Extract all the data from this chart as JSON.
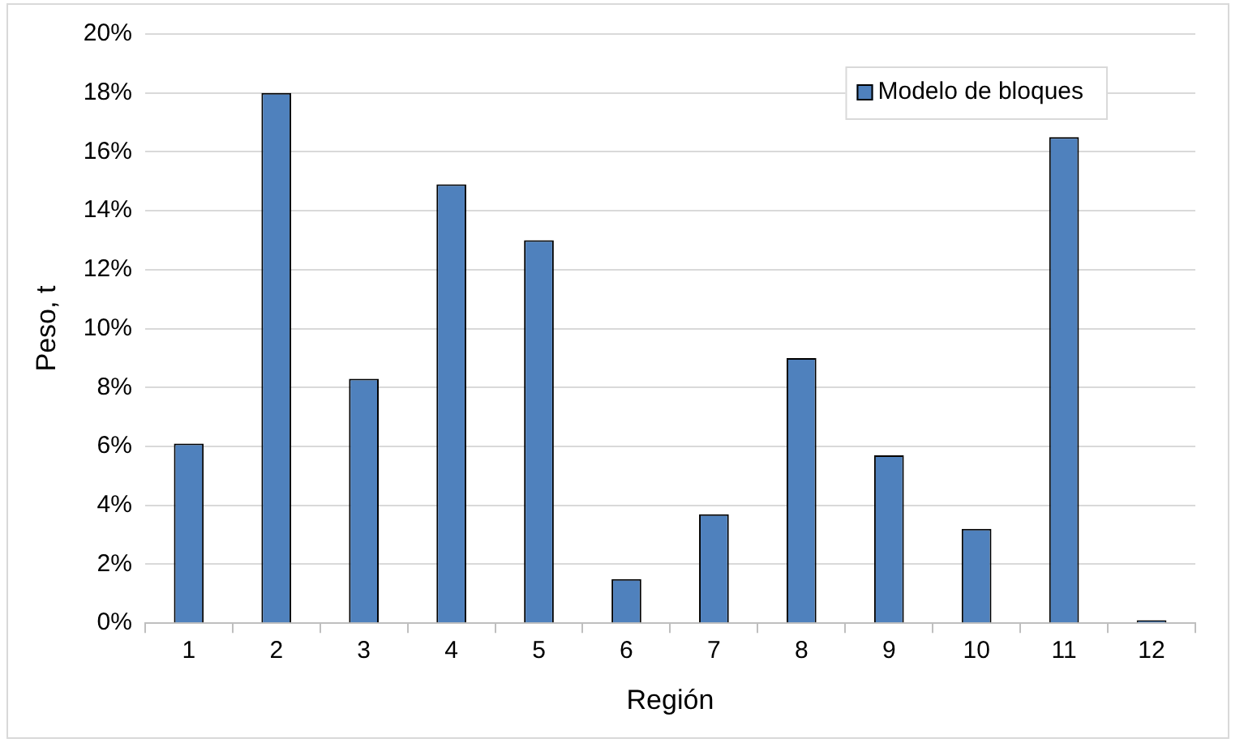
{
  "chart_data": {
    "type": "bar",
    "xlabel": "Región",
    "ylabel": "Peso, t",
    "categories": [
      "1",
      "2",
      "3",
      "4",
      "5",
      "6",
      "7",
      "8",
      "9",
      "10",
      "11",
      "12"
    ],
    "series": [
      {
        "name": "Modelo de bloques",
        "color": "#4f81bd",
        "values": [
          6.1,
          18.0,
          8.3,
          14.9,
          13.0,
          1.5,
          3.7,
          9.0,
          5.7,
          3.2,
          16.5,
          0.1
        ]
      }
    ],
    "ylim": [
      0,
      20
    ],
    "yticks": [
      {
        "value": 0,
        "label": "0%"
      },
      {
        "value": 2,
        "label": "2%"
      },
      {
        "value": 4,
        "label": "4%"
      },
      {
        "value": 6,
        "label": "6%"
      },
      {
        "value": 8,
        "label": "8%"
      },
      {
        "value": 10,
        "label": "10%"
      },
      {
        "value": 12,
        "label": "12%"
      },
      {
        "value": 14,
        "label": "14%"
      },
      {
        "value": 16,
        "label": "16%"
      },
      {
        "value": 18,
        "label": "18%"
      },
      {
        "value": 20,
        "label": "20%"
      }
    ],
    "grid": "y",
    "legend": "top right"
  }
}
